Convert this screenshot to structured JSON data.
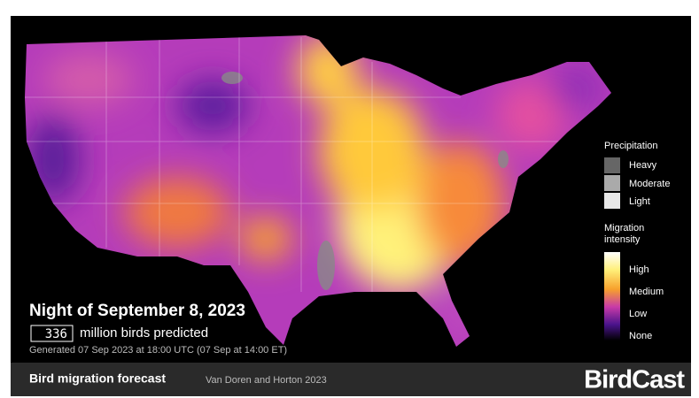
{
  "forecast": {
    "title": "Night of September 8, 2023",
    "birds_count": 336,
    "birds_text": "million birds predicted",
    "generated": "Generated 07 Sep 2023 at 18:00 UTC (07 Sep at 14:00 ET)"
  },
  "precipitation_legend": {
    "title": "Precipitation",
    "items": [
      "Heavy",
      "Moderate",
      "Light"
    ]
  },
  "intensity_legend": {
    "title_lines": [
      "Migration",
      "intensity"
    ],
    "items": [
      "High",
      "Medium",
      "Low",
      "None"
    ]
  },
  "footer": {
    "title": "Bird migration forecast",
    "credit": "Van Doren and Horton 2023",
    "brand": "BirdCast"
  }
}
